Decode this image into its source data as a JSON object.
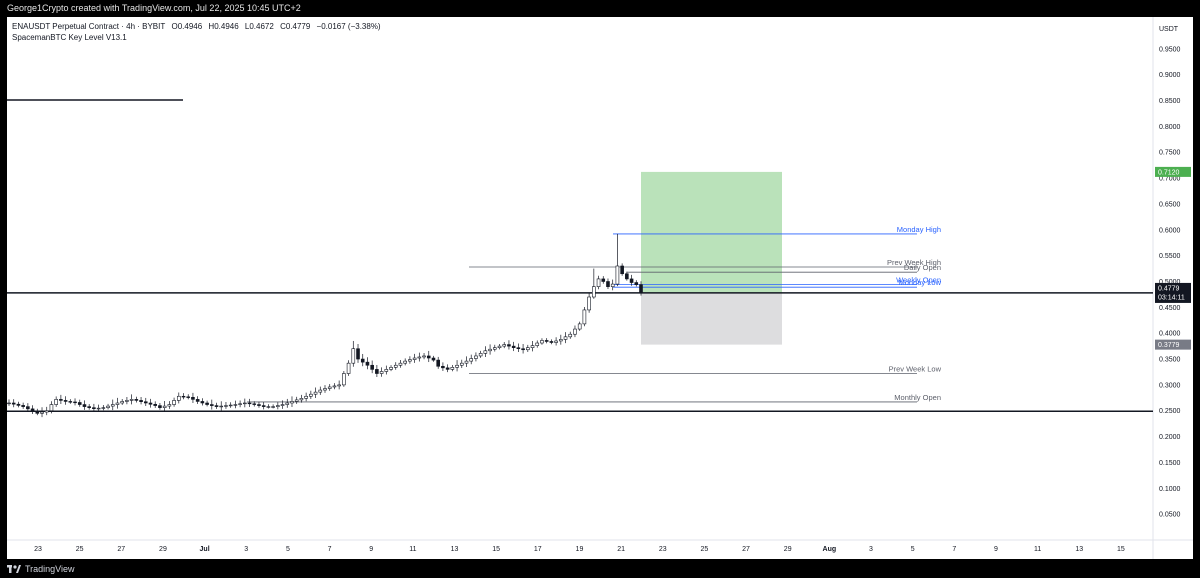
{
  "header": {
    "credit": "George1Crypto created with TradingView.com, Jul 22, 2025 10:45 UTC+2"
  },
  "legend": {
    "symbol": "ENAUSDT Perpetual Contract · 4h · BYBIT",
    "open": "O0.4946",
    "high": "H0.4946",
    "low": "L0.4672",
    "close": "C0.4779",
    "change": "−0.0167 (−3.38%)",
    "indicator": "SpacemanBTC Key Level V13.1"
  },
  "footer": {
    "brand": "TradingView"
  },
  "colors": {
    "up": "#131722",
    "down": "#131722",
    "target_zone": "#b2dfb2",
    "stop_zone": "#d9d9dc",
    "weekly_level": "#2962ff",
    "key_level": "#5d606b",
    "target_tag": "#4caf50",
    "stop_tag": "#787b86",
    "price_tag": "#131722"
  },
  "chart_data": {
    "type": "candlestick",
    "currency": "USDT",
    "ylim": [
      0.0,
      1.0
    ],
    "y_ticks": [
      "0.9500",
      "0.9000",
      "0.8500",
      "0.8000",
      "0.7500",
      "0.7000",
      "0.6500",
      "0.6000",
      "0.5500",
      "0.5000",
      "0.4500",
      "0.4000",
      "0.3500",
      "0.3000",
      "0.2500",
      "0.2000",
      "0.1500",
      "0.1000",
      "0.0500"
    ],
    "y_tick_values": [
      0.95,
      0.9,
      0.85,
      0.8,
      0.75,
      0.7,
      0.65,
      0.6,
      0.55,
      0.5,
      0.45,
      0.4,
      0.35,
      0.3,
      0.25,
      0.2,
      0.15,
      0.1,
      0.05
    ],
    "x_ticks": [
      "23",
      "25",
      "27",
      "29",
      "Jul",
      "3",
      "5",
      "7",
      "9",
      "11",
      "13",
      "15",
      "17",
      "19",
      "21",
      "23",
      "25",
      "27",
      "29",
      "Aug",
      "3",
      "5",
      "7",
      "9",
      "11",
      "13",
      "15"
    ],
    "close_path": [
      [
        0,
        0.265
      ],
      [
        3,
        0.258
      ],
      [
        6,
        0.245
      ],
      [
        8,
        0.25
      ],
      [
        9,
        0.262
      ],
      [
        10,
        0.272
      ],
      [
        12,
        0.268
      ],
      [
        14,
        0.266
      ],
      [
        15,
        0.262
      ],
      [
        16,
        0.258
      ],
      [
        18,
        0.254
      ],
      [
        20,
        0.256
      ],
      [
        22,
        0.262
      ],
      [
        24,
        0.268
      ],
      [
        26,
        0.272
      ],
      [
        27,
        0.27
      ],
      [
        29,
        0.265
      ],
      [
        31,
        0.26
      ],
      [
        32,
        0.256
      ],
      [
        34,
        0.262
      ],
      [
        35,
        0.27
      ],
      [
        36,
        0.278
      ],
      [
        38,
        0.276
      ],
      [
        40,
        0.268
      ],
      [
        42,
        0.262
      ],
      [
        44,
        0.258
      ],
      [
        46,
        0.26
      ],
      [
        48,
        0.262
      ],
      [
        50,
        0.265
      ],
      [
        52,
        0.262
      ],
      [
        54,
        0.258
      ],
      [
        56,
        0.258
      ],
      [
        58,
        0.262
      ],
      [
        60,
        0.268
      ],
      [
        62,
        0.274
      ],
      [
        64,
        0.282
      ],
      [
        66,
        0.29
      ],
      [
        68,
        0.296
      ],
      [
        70,
        0.3
      ],
      [
        71,
        0.322
      ],
      [
        72,
        0.342
      ],
      [
        73,
        0.37
      ],
      [
        74,
        0.35
      ],
      [
        76,
        0.338
      ],
      [
        78,
        0.322
      ],
      [
        80,
        0.33
      ],
      [
        82,
        0.338
      ],
      [
        84,
        0.346
      ],
      [
        86,
        0.352
      ],
      [
        88,
        0.356
      ],
      [
        90,
        0.348
      ],
      [
        91,
        0.336
      ],
      [
        93,
        0.33
      ],
      [
        95,
        0.338
      ],
      [
        97,
        0.346
      ],
      [
        99,
        0.356
      ],
      [
        101,
        0.366
      ],
      [
        103,
        0.372
      ],
      [
        105,
        0.378
      ],
      [
        107,
        0.372
      ],
      [
        109,
        0.368
      ],
      [
        111,
        0.376
      ],
      [
        113,
        0.386
      ],
      [
        115,
        0.382
      ],
      [
        117,
        0.388
      ],
      [
        119,
        0.398
      ],
      [
        121,
        0.418
      ],
      [
        122,
        0.445
      ],
      [
        123,
        0.47
      ],
      [
        124,
        0.49
      ],
      [
        125,
        0.505
      ],
      [
        126,
        0.5
      ],
      [
        127,
        0.49
      ],
      [
        128,
        0.495
      ],
      [
        129,
        0.53
      ],
      [
        130,
        0.515
      ],
      [
        131,
        0.505
      ],
      [
        132,
        0.498
      ],
      [
        133,
        0.494
      ],
      [
        134,
        0.4779
      ]
    ],
    "last_price": 0.4779,
    "countdown": "03:14:11",
    "current_tag": 0.4769,
    "horizontal_levels": [
      {
        "name": "Monday High",
        "value": 0.592
      },
      {
        "name": "Prev Week High",
        "value": 0.528
      },
      {
        "name": "Daily Open",
        "value": 0.518
      },
      {
        "name": "Weekly Open",
        "value": 0.494
      },
      {
        "name": "Monday Low",
        "value": 0.489
      },
      {
        "name": "Prev Week Low",
        "value": 0.322
      },
      {
        "name": "Monthly Open",
        "value": 0.267
      }
    ],
    "drawn_lines": [
      0.4779,
      0.249
    ],
    "position": {
      "type": "long",
      "entry": 0.4779,
      "target": 0.712,
      "stop": 0.3779,
      "target_label": "0.7120",
      "stop_label": "0.3779"
    },
    "price_tags": {
      "last": "0.4779",
      "current": "0.4769"
    }
  }
}
